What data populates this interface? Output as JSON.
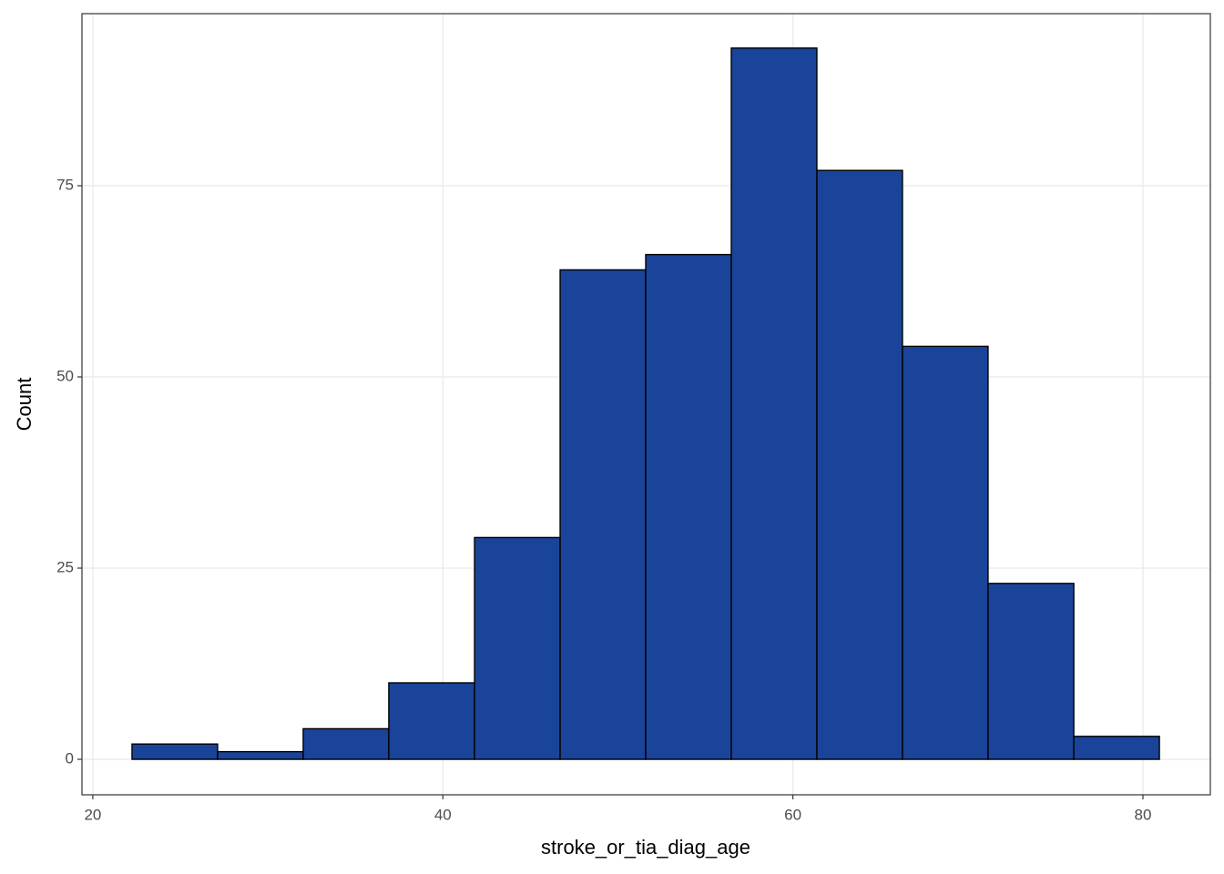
{
  "chart_data": {
    "type": "histogram",
    "x_label": "stroke_or_tia_diag_age",
    "y_label": "Count",
    "bins": [
      22.24,
      27.13,
      32.02,
      36.91,
      41.81,
      46.7,
      51.59,
      56.48,
      61.37,
      66.26,
      71.15,
      76.05,
      80.94
    ],
    "values": [
      2,
      1,
      4,
      10,
      29,
      64,
      66,
      93,
      77,
      54,
      23,
      3
    ],
    "color": "#1a4499",
    "edge_color": "#000000",
    "xlim": [
      19.38,
      83.85
    ],
    "xticks": [
      20,
      40,
      60,
      80
    ],
    "ylim": [
      -4.64,
      97.5
    ],
    "yticks": [
      0,
      25,
      50,
      75
    ],
    "grid": true
  }
}
